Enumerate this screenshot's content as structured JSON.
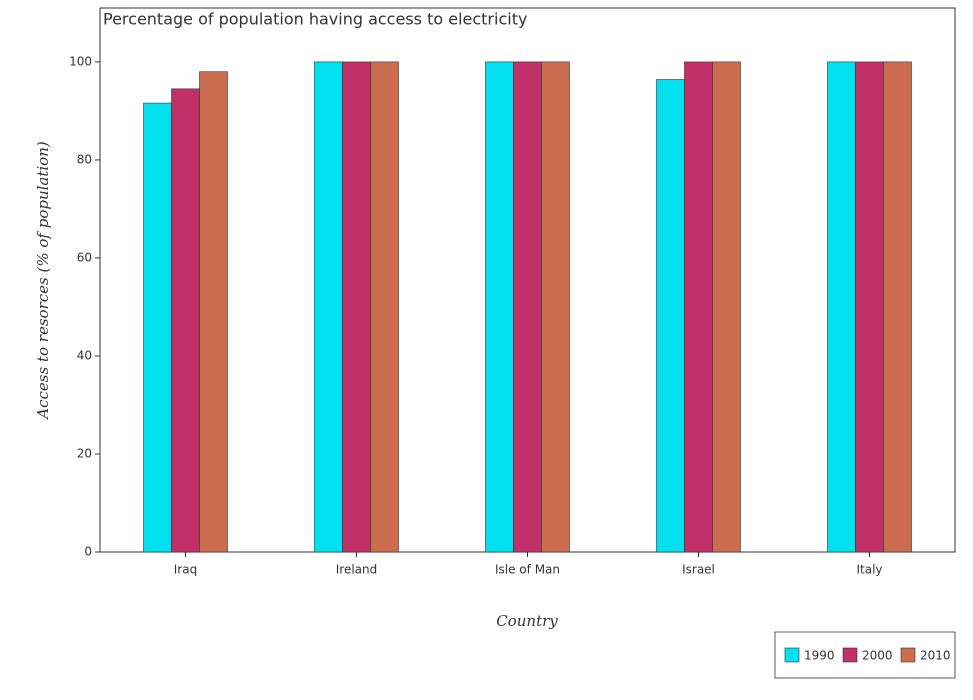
{
  "chart_data": {
    "type": "bar",
    "title": "Percentage of population having access to electricity",
    "x_label": "Country",
    "y_label": "Access to resorces (% of population)",
    "categories": [
      "Iraq",
      "Ireland",
      "Isle of Man",
      "Israel",
      "Italy"
    ],
    "series": [
      {
        "name": "1990",
        "color": "#00e0ee",
        "values": [
          91.6,
          100,
          100,
          96.4,
          100
        ]
      },
      {
        "name": "2000",
        "color": "#c2306a",
        "values": [
          94.5,
          100,
          100,
          100,
          100
        ]
      },
      {
        "name": "2010",
        "color": "#cd6d50",
        "values": [
          98,
          100,
          100,
          100,
          100
        ]
      }
    ],
    "ylim": [
      0,
      111
    ],
    "yticks": [
      0,
      20,
      40,
      60,
      80,
      100
    ],
    "legend": "lower right"
  }
}
